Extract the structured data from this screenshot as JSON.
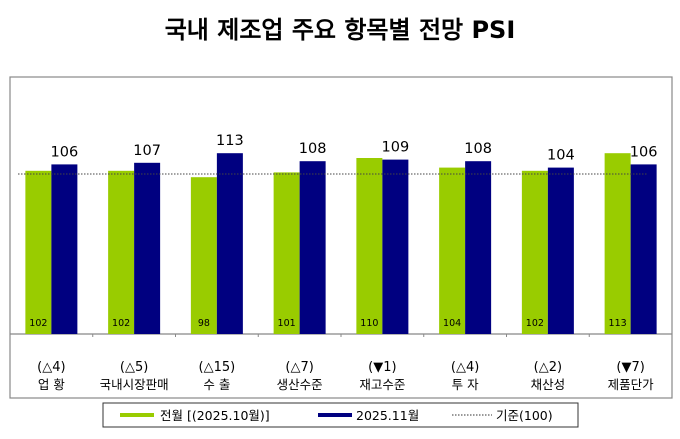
{
  "chart_data": {
    "type": "bar",
    "title": "국내 제조업 주요 항목별 전망 PSI",
    "categories": [
      "업 황",
      "국내시장판매",
      "수 출",
      "생산수준",
      "재고수준",
      "투 자",
      "채산성",
      "제품단가"
    ],
    "series": [
      {
        "name": "전월 [(2025.10월)]",
        "color": "#99cc00",
        "values": [
          102,
          102,
          98,
          101,
          110,
          104,
          102,
          113
        ]
      },
      {
        "name": "2025.11월",
        "color": "#000080",
        "values": [
          106,
          107,
          113,
          108,
          109,
          108,
          104,
          106
        ]
      }
    ],
    "changes": [
      "(△4)",
      "(△5)",
      "(△15)",
      "(△7)",
      "(▼1)",
      "(△4)",
      "(△2)",
      "(▼7)"
    ],
    "reference": {
      "label": "기준(100)",
      "value": 100
    },
    "ylim": [
      0,
      135
    ],
    "legend_position": "bottom"
  }
}
